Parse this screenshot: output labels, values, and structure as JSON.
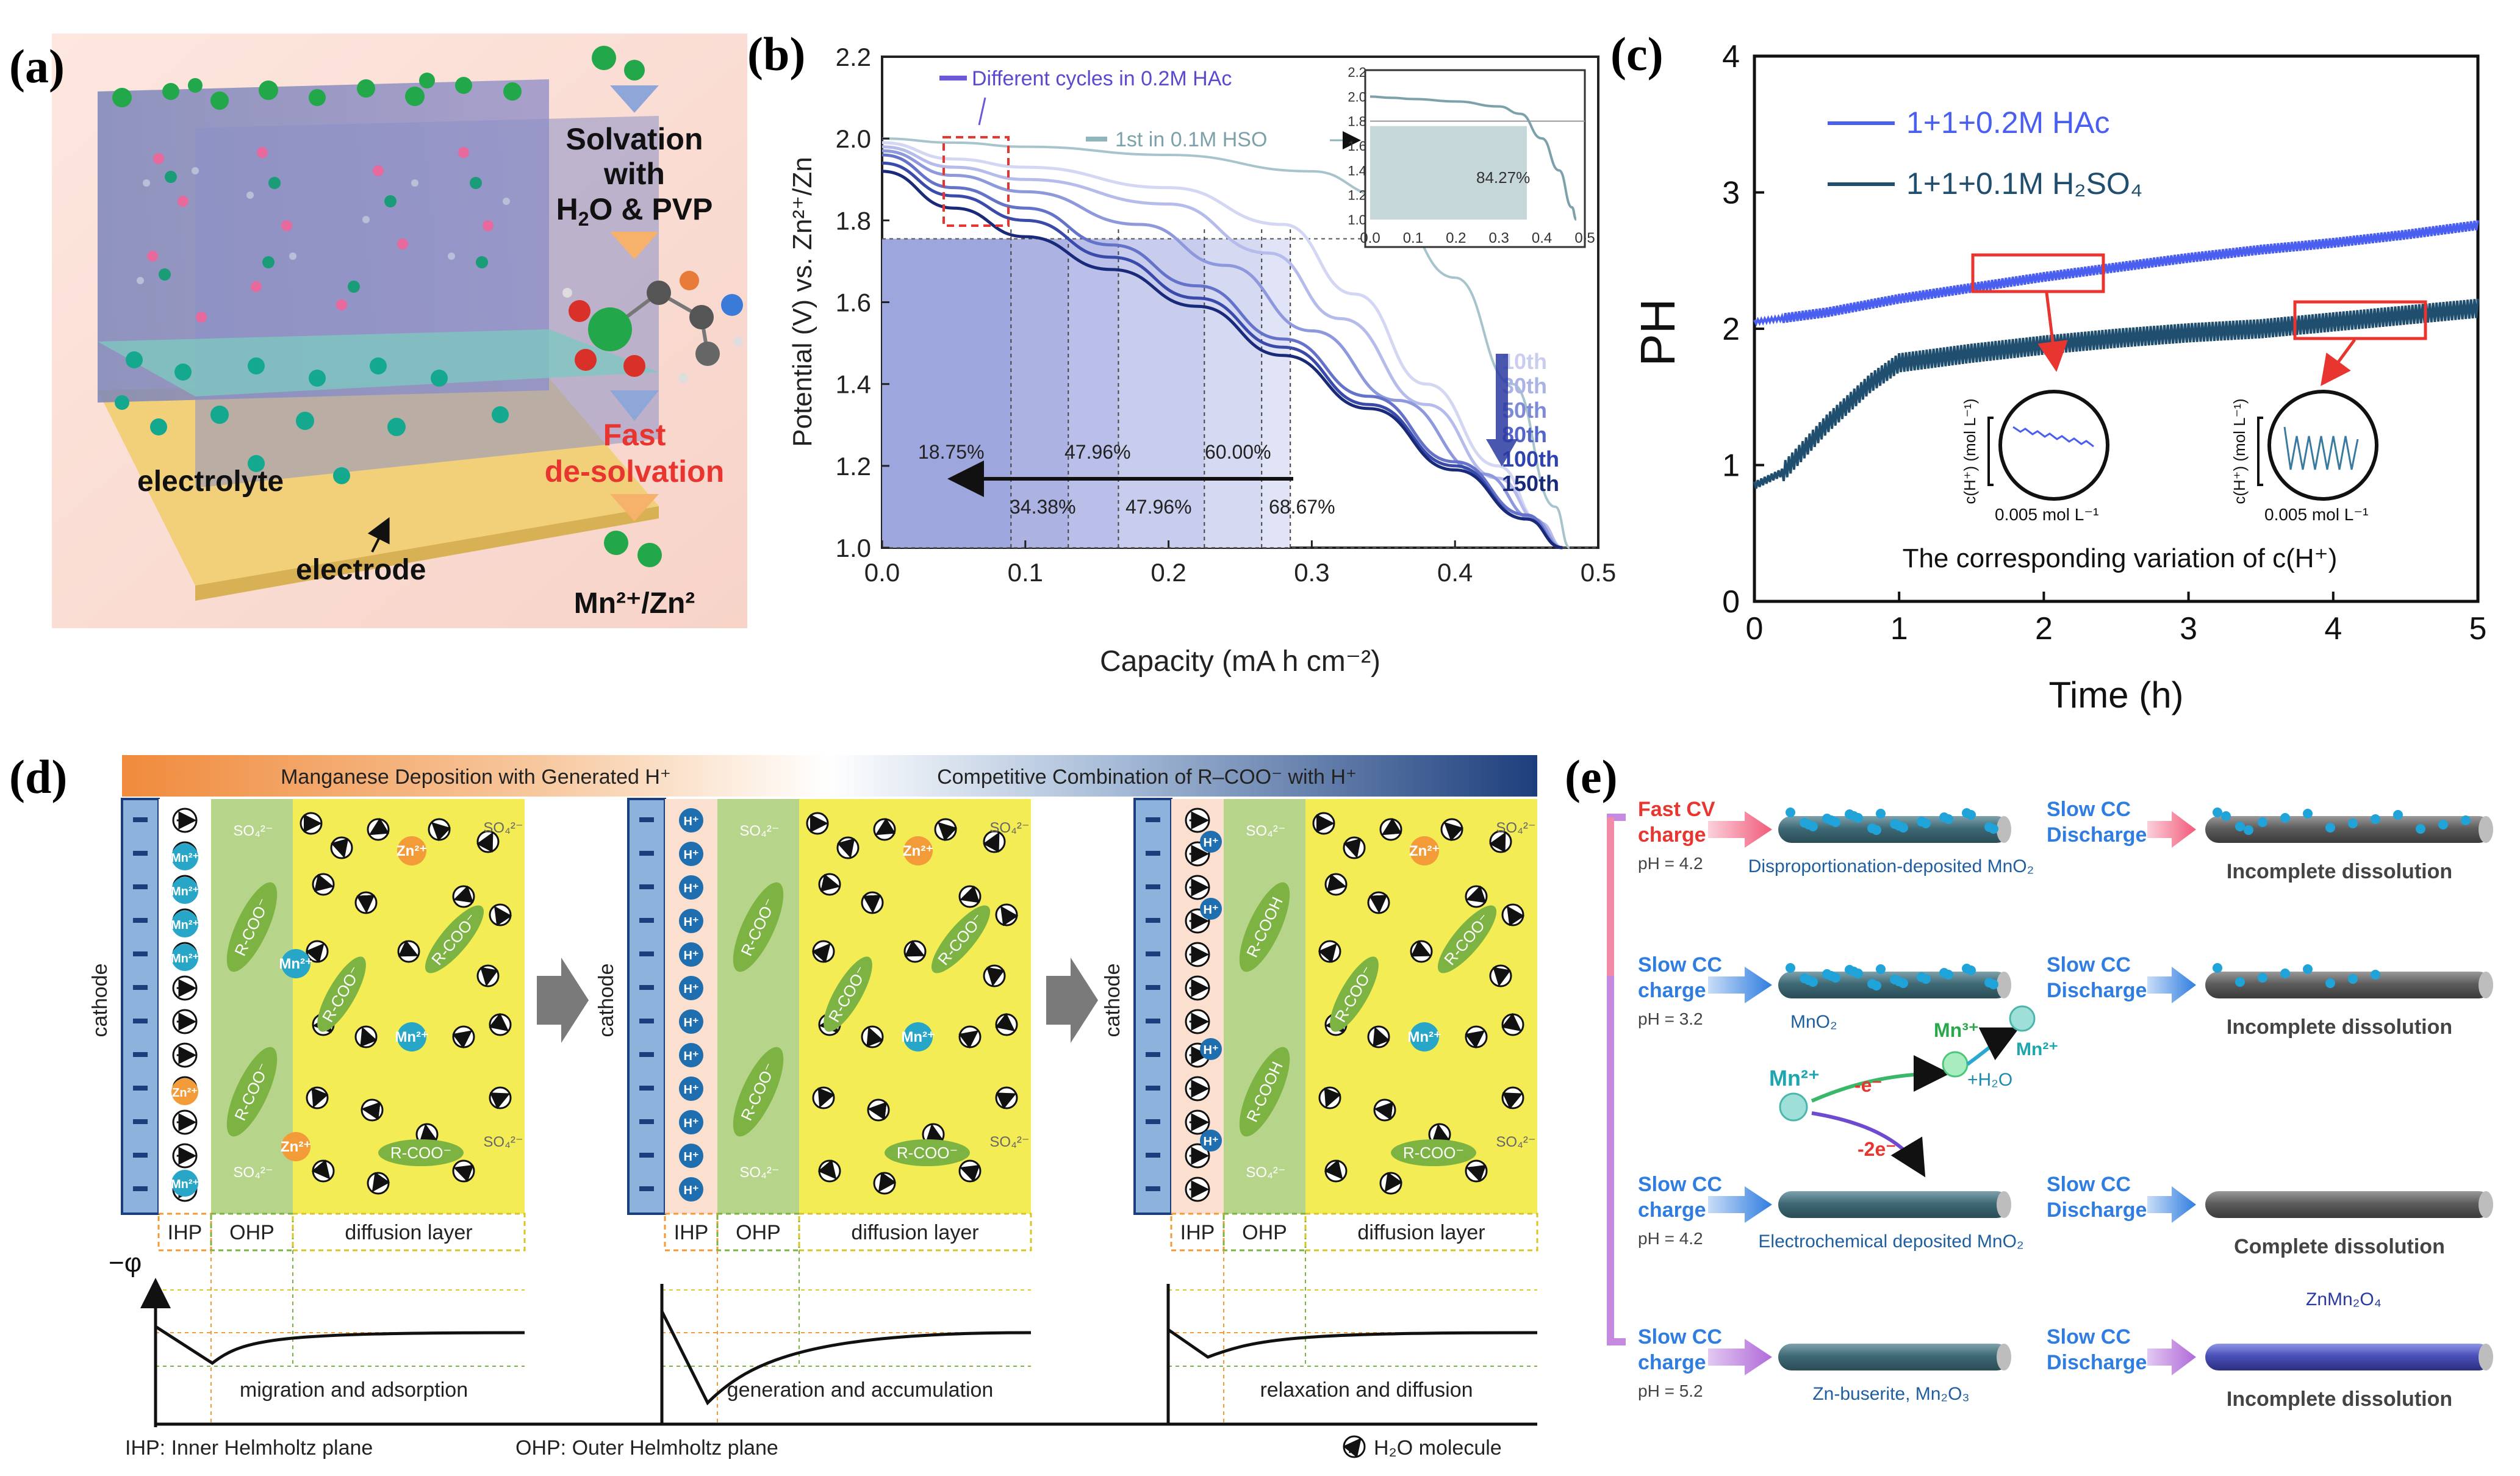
{
  "panel_a": {
    "label": "(a)",
    "solvation_line1": "Solvation",
    "solvation_line2": "with",
    "solvation_line3": "H",
    "solvation_line3_sub": "2",
    "solvation_line3_rest": "O & PVP",
    "fast_line1": "Fast",
    "fast_line2": "de-solvation",
    "ions_label": "Mn²⁺/Zn²",
    "electrolyte": "electrolyte",
    "electrode": "electrode"
  },
  "panel_b": {
    "label": "(b)",
    "legend_hac": "Different cycles in 0.2M HAc",
    "legend_hso": "1st in 0.1M HSO",
    "pct_top": [
      "18.75%",
      "47.96%",
      "60.00%"
    ],
    "pct_bottom": [
      "34.38%",
      "47.96%",
      "68.67%"
    ],
    "cycle_labels": [
      "10th",
      "30th",
      "50th",
      "80th",
      "100th",
      "150th"
    ],
    "inset": {
      "pct": "84.27%"
    }
  },
  "chart_data": [
    {
      "type": "line",
      "title": "",
      "xlabel": "Capacity (mA h cm⁻²)",
      "ylabel": "Potential (V) vs. Zn²⁺/Zn",
      "xlim": [
        0,
        0.5
      ],
      "ylim": [
        1.0,
        2.2
      ],
      "xticks": [
        "0.0",
        "0.1",
        "0.2",
        "0.3",
        "0.4",
        "0.5"
      ],
      "yticks": [
        "1.0",
        "1.2",
        "1.4",
        "1.6",
        "1.8",
        "2.0",
        "2.2"
      ],
      "series": [
        {
          "name": "1st in 0.1M HSO",
          "x": [
            0,
            0.05,
            0.1,
            0.2,
            0.3,
            0.35,
            0.4,
            0.44,
            0.47,
            0.48
          ],
          "y": [
            2.0,
            1.99,
            1.98,
            1.96,
            1.92,
            1.86,
            1.66,
            1.4,
            1.1,
            1.0
          ]
        },
        {
          "name": "10th",
          "x": [
            0,
            0.05,
            0.1,
            0.2,
            0.28,
            0.33,
            0.38,
            0.43,
            0.46,
            0.475
          ],
          "y": [
            1.99,
            1.95,
            1.93,
            1.88,
            1.79,
            1.62,
            1.4,
            1.2,
            1.06,
            1.0
          ]
        },
        {
          "name": "30th",
          "x": [
            0,
            0.05,
            0.1,
            0.2,
            0.27,
            0.32,
            0.38,
            0.43,
            0.46,
            0.475
          ],
          "y": [
            1.98,
            1.93,
            1.9,
            1.84,
            1.72,
            1.56,
            1.35,
            1.17,
            1.06,
            1.0
          ]
        },
        {
          "name": "50th",
          "x": [
            0,
            0.05,
            0.1,
            0.18,
            0.24,
            0.3,
            0.36,
            0.42,
            0.455,
            0.475
          ],
          "y": [
            1.97,
            1.91,
            1.87,
            1.79,
            1.69,
            1.53,
            1.36,
            1.18,
            1.07,
            1.0
          ]
        },
        {
          "name": "80th",
          "x": [
            0,
            0.05,
            0.1,
            0.16,
            0.22,
            0.28,
            0.34,
            0.4,
            0.45,
            0.475
          ],
          "y": [
            1.96,
            1.88,
            1.83,
            1.74,
            1.64,
            1.51,
            1.37,
            1.21,
            1.08,
            1.0
          ]
        },
        {
          "name": "100th",
          "x": [
            0,
            0.05,
            0.1,
            0.16,
            0.22,
            0.28,
            0.34,
            0.4,
            0.45,
            0.475
          ],
          "y": [
            1.94,
            1.86,
            1.8,
            1.71,
            1.61,
            1.49,
            1.35,
            1.2,
            1.07,
            1.0
          ]
        },
        {
          "name": "150th",
          "x": [
            0,
            0.05,
            0.1,
            0.16,
            0.22,
            0.28,
            0.34,
            0.4,
            0.45,
            0.475
          ],
          "y": [
            1.92,
            1.83,
            1.76,
            1.68,
            1.59,
            1.47,
            1.34,
            1.19,
            1.07,
            1.0
          ]
        }
      ]
    },
    {
      "type": "line",
      "title": "",
      "xlabel": "Time (h)",
      "ylabel": "PH",
      "xlim": [
        0,
        5
      ],
      "ylim": [
        0,
        4
      ],
      "xticks": [
        "0",
        "1",
        "2",
        "3",
        "4",
        "5"
      ],
      "yticks": [
        "0",
        "1",
        "2",
        "3",
        "4"
      ],
      "series": [
        {
          "name": "1+1+0.2M HAc",
          "x": [
            0,
            0.5,
            1,
            1.5,
            2,
            2.5,
            3,
            3.5,
            4,
            4.5,
            5
          ],
          "y": [
            2.05,
            2.12,
            2.22,
            2.3,
            2.38,
            2.45,
            2.52,
            2.58,
            2.63,
            2.69,
            2.76
          ]
        },
        {
          "name": "1+1+0.1M H₂SO₄",
          "x": [
            0,
            0.2,
            0.5,
            0.8,
            1,
            1.5,
            2,
            2.5,
            3,
            3.5,
            4,
            4.5,
            5
          ],
          "y": [
            0.85,
            0.95,
            1.3,
            1.6,
            1.75,
            1.82,
            1.88,
            1.93,
            1.97,
            2.0,
            2.05,
            2.1,
            2.15
          ]
        }
      ]
    }
  ],
  "panel_c": {
    "label": "(c)",
    "inset_axis": "c(H⁺) (mol L⁻¹)",
    "inset_scale": "0.005 mol L⁻¹",
    "caption": "The corresponding variation of c(H⁺)"
  },
  "panel_d": {
    "label": "(d)",
    "banner_left": "Manganese Deposition with Generated H⁺",
    "banner_right": "Competitive Combination of R–COO⁻ with H⁺",
    "cathode": "cathode",
    "ihp": "IHP",
    "ohp": "OHP",
    "diffusion": "diffusion layer",
    "phi": "−φ",
    "step1": "migration and adsorption",
    "step2": "generation and accumulation",
    "step3": "relaxation and diffusion",
    "legend_ihp": "IHP: Inner Helmholtz plane",
    "legend_ohp": "OHP: Outer Helmholtz plane",
    "legend_h2o": "H₂O molecule",
    "so4": "SO₄²⁻",
    "rcoo": "R-COO⁻",
    "rcooh": "R-COOH",
    "mn": "Mn²⁺",
    "zn": "Zn²⁺",
    "h": "H⁺"
  },
  "panel_e": {
    "label": "(e)",
    "rows": [
      {
        "charge1": "Fast CV",
        "charge2": "charge",
        "ph": "pH = 4.2",
        "deposit": "Disproportionation-deposited MnO₂",
        "discharge1": "Slow CC",
        "discharge2": "Discharge",
        "result": "Incomplete dissolution"
      },
      {
        "charge1": "Slow CC",
        "charge2": "charge",
        "ph": "pH = 3.2",
        "deposit": "MnO₂",
        "discharge1": "Slow CC",
        "discharge2": "Discharge",
        "result": "Incomplete dissolution"
      },
      {
        "charge1": "Slow CC",
        "charge2": "charge",
        "ph": "pH = 4.2",
        "deposit": "Electrochemical deposited MnO₂",
        "discharge1": "Slow CC",
        "discharge2": "Discharge",
        "result": "Complete dissolution"
      },
      {
        "charge1": "Slow CC",
        "charge2": "charge",
        "ph": "pH = 5.2",
        "deposit": "Zn-buserite, Mn₂O₃",
        "discharge1": "Slow CC",
        "discharge2": "Discharge",
        "result": "Incomplete dissolution"
      }
    ],
    "mn2": "Mn²⁺",
    "mn3": "Mn³⁺",
    "mn2b": "Mn²⁺",
    "e1": "-e⁻",
    "e2": "-2e⁻",
    "h2o": "+H₂O",
    "znmn": "ZnMn₂O₄"
  },
  "colors": {
    "blue_hac": "#4a5ff0",
    "dark_h2so4": "#1f4e6e",
    "red": "#e8352f",
    "navy": "#1a2a7a"
  }
}
